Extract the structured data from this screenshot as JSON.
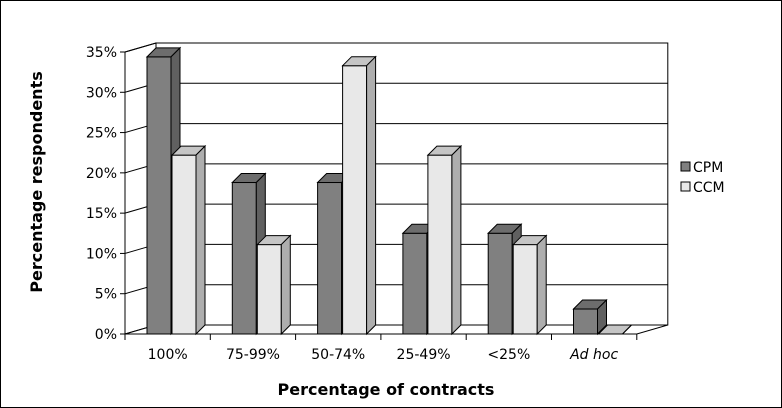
{
  "chart_data": {
    "type": "bar",
    "xlabel": "Percentage of contracts",
    "ylabel": "Percentage respondents",
    "categories": [
      "100%",
      "75-99%",
      "50-74%",
      "25-49%",
      "<25%",
      "Ad hoc"
    ],
    "series": [
      {
        "name": "CPM",
        "values": [
          34.4,
          18.8,
          18.8,
          12.5,
          12.5,
          3.1
        ],
        "color": "#808080"
      },
      {
        "name": "CCM",
        "values": [
          22.2,
          11.1,
          33.3,
          22.2,
          11.1,
          0
        ],
        "color": "#e8e8e8"
      }
    ],
    "ylim": [
      0,
      35
    ],
    "yticks": [
      0,
      5,
      10,
      15,
      20,
      25,
      30,
      35
    ],
    "ytick_labels": [
      "0%",
      "5%",
      "10%",
      "15%",
      "20%",
      "25%",
      "30%",
      "35%"
    ],
    "grid": true,
    "legend_position": "right",
    "italic_categories": [
      "Ad hoc"
    ]
  }
}
